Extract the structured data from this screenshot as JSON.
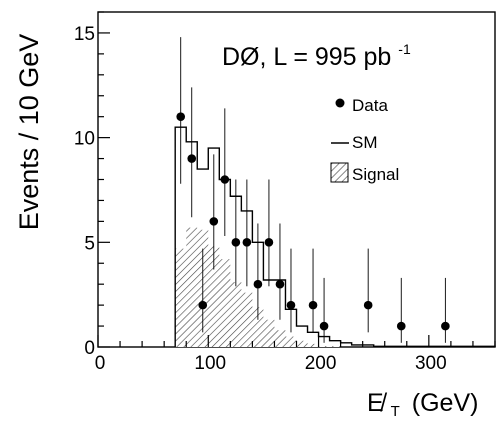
{
  "chart_data": {
    "type": "bar",
    "annotation": "DØ, L = 995 pb",
    "annotation_sup": "-1",
    "ylabel": "Events / 10 GeV",
    "xlabel": "E̸",
    "xlabel_sub": "T",
    "xlabel_unit": "(GeV)",
    "xlim": [
      0,
      360
    ],
    "ylim": [
      0,
      16
    ],
    "xticks": [
      {
        "value": 0,
        "label": "0"
      },
      {
        "value": 100,
        "label": "100"
      },
      {
        "value": 200,
        "label": "200"
      },
      {
        "value": 300,
        "label": "300"
      }
    ],
    "yticks": [
      {
        "value": 0,
        "label": "0"
      },
      {
        "value": 5,
        "label": "5"
      },
      {
        "value": 10,
        "label": "10"
      },
      {
        "value": 15,
        "label": "15"
      }
    ],
    "legend": {
      "placement": "top-right",
      "entries": [
        {
          "label": "Data",
          "marker": "point"
        },
        {
          "label": "SM",
          "marker": "line"
        },
        {
          "label": "Signal",
          "marker": "hatched"
        }
      ]
    },
    "series": [
      {
        "name": "SM",
        "kind": "step",
        "bins": [
          [
            70,
            80,
            10.5
          ],
          [
            80,
            90,
            9.8
          ],
          [
            90,
            100,
            8.5
          ],
          [
            100,
            110,
            9.5
          ],
          [
            110,
            120,
            8.0
          ],
          [
            120,
            130,
            7.2
          ],
          [
            130,
            140,
            6.5
          ],
          [
            140,
            150,
            5.0
          ],
          [
            150,
            160,
            3.2
          ],
          [
            160,
            170,
            3.2
          ],
          [
            170,
            180,
            1.8
          ],
          [
            180,
            190,
            1.0
          ],
          [
            190,
            200,
            0.7
          ],
          [
            200,
            210,
            0.5
          ],
          [
            210,
            220,
            0.3
          ],
          [
            220,
            230,
            0.2
          ],
          [
            230,
            250,
            0.1
          ],
          [
            250,
            360,
            0.03
          ]
        ]
      },
      {
        "name": "Signal",
        "kind": "hatched",
        "bins": [
          [
            70,
            80,
            4.7
          ],
          [
            80,
            90,
            5.7
          ],
          [
            90,
            100,
            5.6
          ],
          [
            100,
            110,
            4.8
          ],
          [
            110,
            120,
            4.2
          ],
          [
            120,
            130,
            3.1
          ],
          [
            130,
            140,
            2.6
          ],
          [
            140,
            150,
            1.9
          ],
          [
            150,
            160,
            1.3
          ],
          [
            160,
            170,
            0.8
          ],
          [
            170,
            180,
            0.5
          ],
          [
            180,
            190,
            0.3
          ],
          [
            190,
            200,
            0.15
          ],
          [
            200,
            220,
            0.05
          ]
        ]
      },
      {
        "name": "Data",
        "kind": "points",
        "points": [
          {
            "x": 75,
            "y": 11,
            "lo": 7.8,
            "hi": 14.8
          },
          {
            "x": 85,
            "y": 9,
            "lo": 6.2,
            "hi": 12.4
          },
          {
            "x": 95,
            "y": 2,
            "lo": 0.7,
            "hi": 4.7
          },
          {
            "x": 105,
            "y": 6,
            "lo": 3.7,
            "hi": 9.2
          },
          {
            "x": 115,
            "y": 8,
            "lo": 5.3,
            "hi": 11.4
          },
          {
            "x": 125,
            "y": 5,
            "lo": 2.9,
            "hi": 8.0
          },
          {
            "x": 135,
            "y": 5,
            "lo": 2.9,
            "hi": 8.0
          },
          {
            "x": 145,
            "y": 3,
            "lo": 1.3,
            "hi": 5.9
          },
          {
            "x": 155,
            "y": 5,
            "lo": 2.9,
            "hi": 8.0
          },
          {
            "x": 165,
            "y": 3,
            "lo": 1.3,
            "hi": 5.9
          },
          {
            "x": 175,
            "y": 2,
            "lo": 0.7,
            "hi": 4.7
          },
          {
            "x": 195,
            "y": 2,
            "lo": 0.7,
            "hi": 4.7
          },
          {
            "x": 205,
            "y": 1,
            "lo": 0.2,
            "hi": 3.3
          },
          {
            "x": 245,
            "y": 2,
            "lo": 0.7,
            "hi": 4.7
          },
          {
            "x": 275,
            "y": 1,
            "lo": 0.2,
            "hi": 3.3
          },
          {
            "x": 315,
            "y": 1,
            "lo": 0.2,
            "hi": 3.3
          }
        ]
      }
    ],
    "grid": false
  }
}
